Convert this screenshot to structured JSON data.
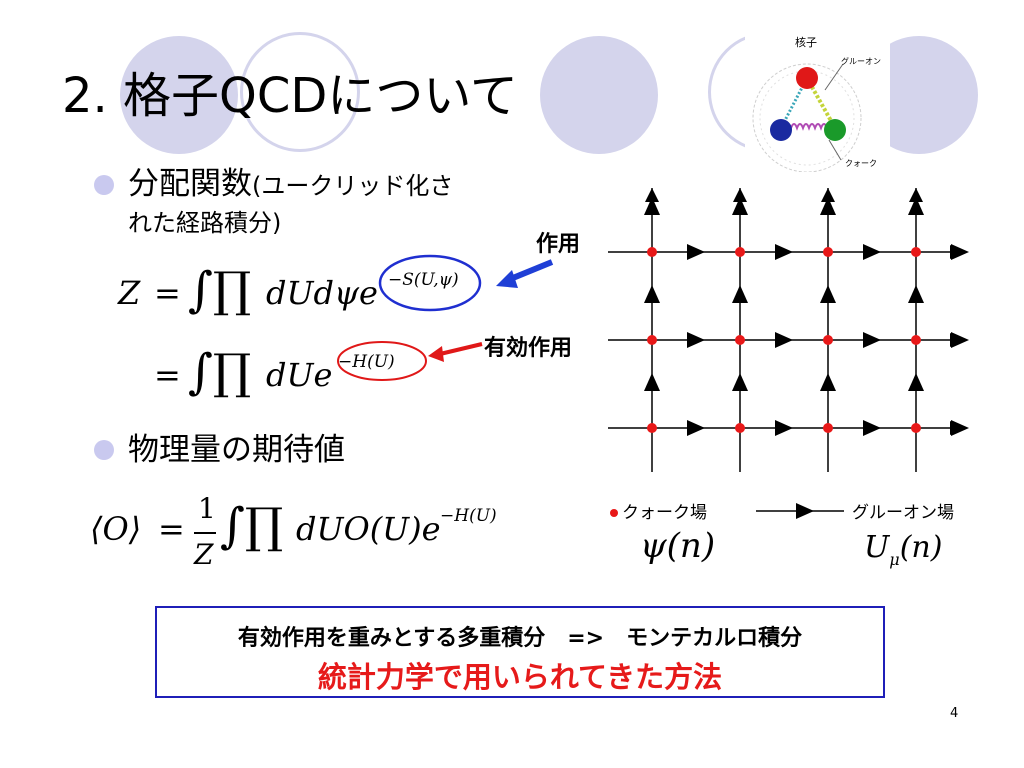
{
  "slide": {
    "title": "2. 格子QCDについて",
    "page_number": "4"
  },
  "bullets": [
    {
      "main": "分配関数",
      "sub_line1": "(ユークリッド化さ",
      "line2": "れた経路積分)"
    },
    {
      "main": "物理量の期待値"
    }
  ],
  "formulas": {
    "z_lhs": "Z",
    "equals": "=",
    "integral": "∫∏",
    "dUdpsi": "dUdψe",
    "action_exp": "−S(U,ψ)",
    "dU": "dUe",
    "heff_exp": "−H(U)",
    "expect_lhs": "⟨O⟩",
    "frac_num": "1",
    "frac_den": "Z",
    "expect_body": "dUO(U)e",
    "expect_exp": "−H(U)"
  },
  "annotations": {
    "action": "作用",
    "effective_action": "有効作用",
    "action_arrow_color": "#1f3fd6",
    "effective_arrow_color": "#e01818"
  },
  "nucleon_diagram": {
    "label": "核子",
    "gluon": "グルーオン",
    "quark": "クォーク",
    "quark_colors": [
      "#e01818",
      "#1a2aa0",
      "#1a9a2a"
    ]
  },
  "lattice_legend": {
    "quark_field": "クォーク場",
    "gluon_field": "グルーオン場",
    "psi_symbol": "ψ(n)",
    "u_symbol": "U",
    "u_subscript": "μ",
    "u_arg": "(n)",
    "node_color": "#e81818"
  },
  "summary_box": {
    "line1": "有効作用を重みとする多重積分　=>　モンテカルロ積分",
    "line2": "統計力学で用いられてきた方法",
    "border_color": "#1f1fb8",
    "highlight_color": "#e61a1a"
  },
  "theme": {
    "decor_color": "#d4d4ec"
  }
}
